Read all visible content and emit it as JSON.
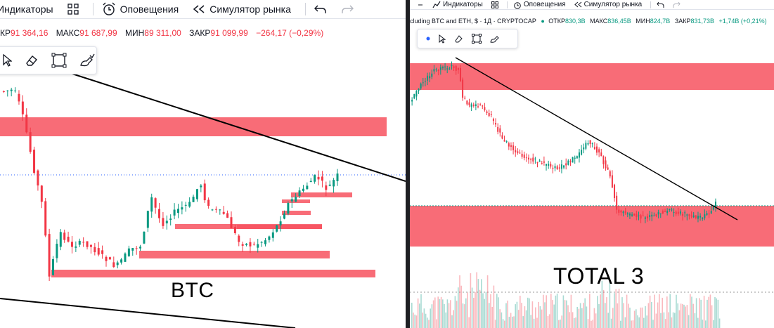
{
  "left": {
    "toolbar": {
      "indicators": "Индикаторы",
      "alerts": "Оповещения",
      "replay": "Симулятор рынка"
    },
    "legend": {
      "open_key": "КР",
      "open_val": "91 364,16",
      "high_key": "МАКС",
      "high_val": "91 687,99",
      "low_key": "МИН",
      "low_val": "89 311,00",
      "close_key": "ЗАКР",
      "close_val": "91 099,99",
      "change": "−264,17 (−0,29%)"
    },
    "label": "BTC"
  },
  "right": {
    "toolbar": {
      "indicators": "Индикаторы",
      "alerts": "Оповещения",
      "replay": "Симулятор рынка"
    },
    "legend": {
      "title": "cluding BTC and ETH, $ · 1Д · CRYPTOCAP",
      "open_key": "ОТКР",
      "open_val": "830,3B",
      "high_key": "МАКС",
      "high_val": "836,45B",
      "low_key": "МИН",
      "low_val": "824,7B",
      "close_key": "ЗАКР",
      "close_val": "831,73B",
      "change": "+1,74B (+0,21%)"
    },
    "label": "TOTAL 3"
  },
  "colors": {
    "zone": "#f7525f",
    "up": "#089981",
    "down": "#f23645",
    "trendline": "#000000"
  },
  "icons": [
    "grid-icon",
    "alarm-clock-icon",
    "rewind-icon",
    "undo-icon",
    "redo-icon",
    "cursor-icon",
    "eraser-icon",
    "rectangle-icon",
    "brush-icon"
  ]
}
